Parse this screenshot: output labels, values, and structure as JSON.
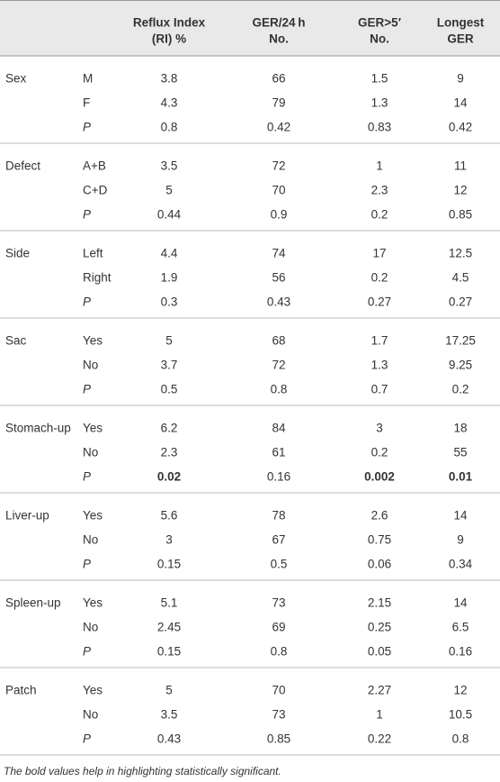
{
  "table": {
    "headers": [
      [
        "Reflux Index",
        "(RI) %"
      ],
      [
        "GER/24 h",
        "No."
      ],
      [
        "GER>5′",
        "No."
      ],
      [
        "Longest",
        "GER"
      ]
    ],
    "groups": [
      {
        "label": "Sex",
        "rows": [
          {
            "sub": "M",
            "values": [
              "3.8",
              "66",
              "1.5",
              "9"
            ]
          },
          {
            "sub": "F",
            "values": [
              "4.3",
              "79",
              "1.3",
              "14"
            ]
          },
          {
            "sub": "P",
            "values": [
              "0.8",
              "0.42",
              "0.83",
              "0.42"
            ]
          }
        ]
      },
      {
        "label": "Defect",
        "rows": [
          {
            "sub": "A+B",
            "values": [
              "3.5",
              "72",
              "1",
              "11"
            ]
          },
          {
            "sub": "C+D",
            "values": [
              "5",
              "70",
              "2.3",
              "12"
            ]
          },
          {
            "sub": "P",
            "values": [
              "0.44",
              "0.9",
              "0.2",
              "0.85"
            ]
          }
        ]
      },
      {
        "label": "Side",
        "rows": [
          {
            "sub": "Left",
            "values": [
              "4.4",
              "74",
              "17",
              "12.5"
            ]
          },
          {
            "sub": "Right",
            "values": [
              "1.9",
              "56",
              "0.2",
              "4.5"
            ]
          },
          {
            "sub": "P",
            "values": [
              "0.3",
              "0.43",
              "0.27",
              "0.27"
            ]
          }
        ]
      },
      {
        "label": "Sac",
        "rows": [
          {
            "sub": "Yes",
            "values": [
              "5",
              "68",
              "1.7",
              "17.25"
            ]
          },
          {
            "sub": "No",
            "values": [
              "3.7",
              "72",
              "1.3",
              "9.25"
            ]
          },
          {
            "sub": "P",
            "values": [
              "0.5",
              "0.8",
              "0.7",
              "0.2"
            ]
          }
        ]
      },
      {
        "label": "Stomach-up",
        "rows": [
          {
            "sub": "Yes",
            "values": [
              "6.2",
              "84",
              "3",
              "18"
            ]
          },
          {
            "sub": "No",
            "values": [
              "2.3",
              "61",
              "0.2",
              "55"
            ]
          },
          {
            "sub": "P",
            "values": [
              "0.02",
              "0.16",
              "0.002",
              "0.01"
            ],
            "bold": [
              0,
              2,
              3
            ]
          }
        ]
      },
      {
        "label": "Liver-up",
        "rows": [
          {
            "sub": "Yes",
            "values": [
              "5.6",
              "78",
              "2.6",
              "14"
            ]
          },
          {
            "sub": "No",
            "values": [
              "3",
              "67",
              "0.75",
              "9"
            ]
          },
          {
            "sub": "P",
            "values": [
              "0.15",
              "0.5",
              "0.06",
              "0.34"
            ]
          }
        ]
      },
      {
        "label": "Spleen-up",
        "rows": [
          {
            "sub": "Yes",
            "values": [
              "5.1",
              "73",
              "2.15",
              "14"
            ]
          },
          {
            "sub": "No",
            "values": [
              "2.45",
              "69",
              "0.25",
              "6.5"
            ]
          },
          {
            "sub": "P",
            "values": [
              "0.15",
              "0.8",
              "0.05",
              "0.16"
            ]
          }
        ]
      },
      {
        "label": "Patch",
        "rows": [
          {
            "sub": "Yes",
            "values": [
              "5",
              "70",
              "2.27",
              "12"
            ]
          },
          {
            "sub": "No",
            "values": [
              "3.5",
              "73",
              "1",
              "10.5"
            ]
          },
          {
            "sub": "P",
            "values": [
              "0.43",
              "0.85",
              "0.22",
              "0.8"
            ]
          }
        ]
      }
    ],
    "footnote": "The bold values help in highlighting statistically significant."
  }
}
